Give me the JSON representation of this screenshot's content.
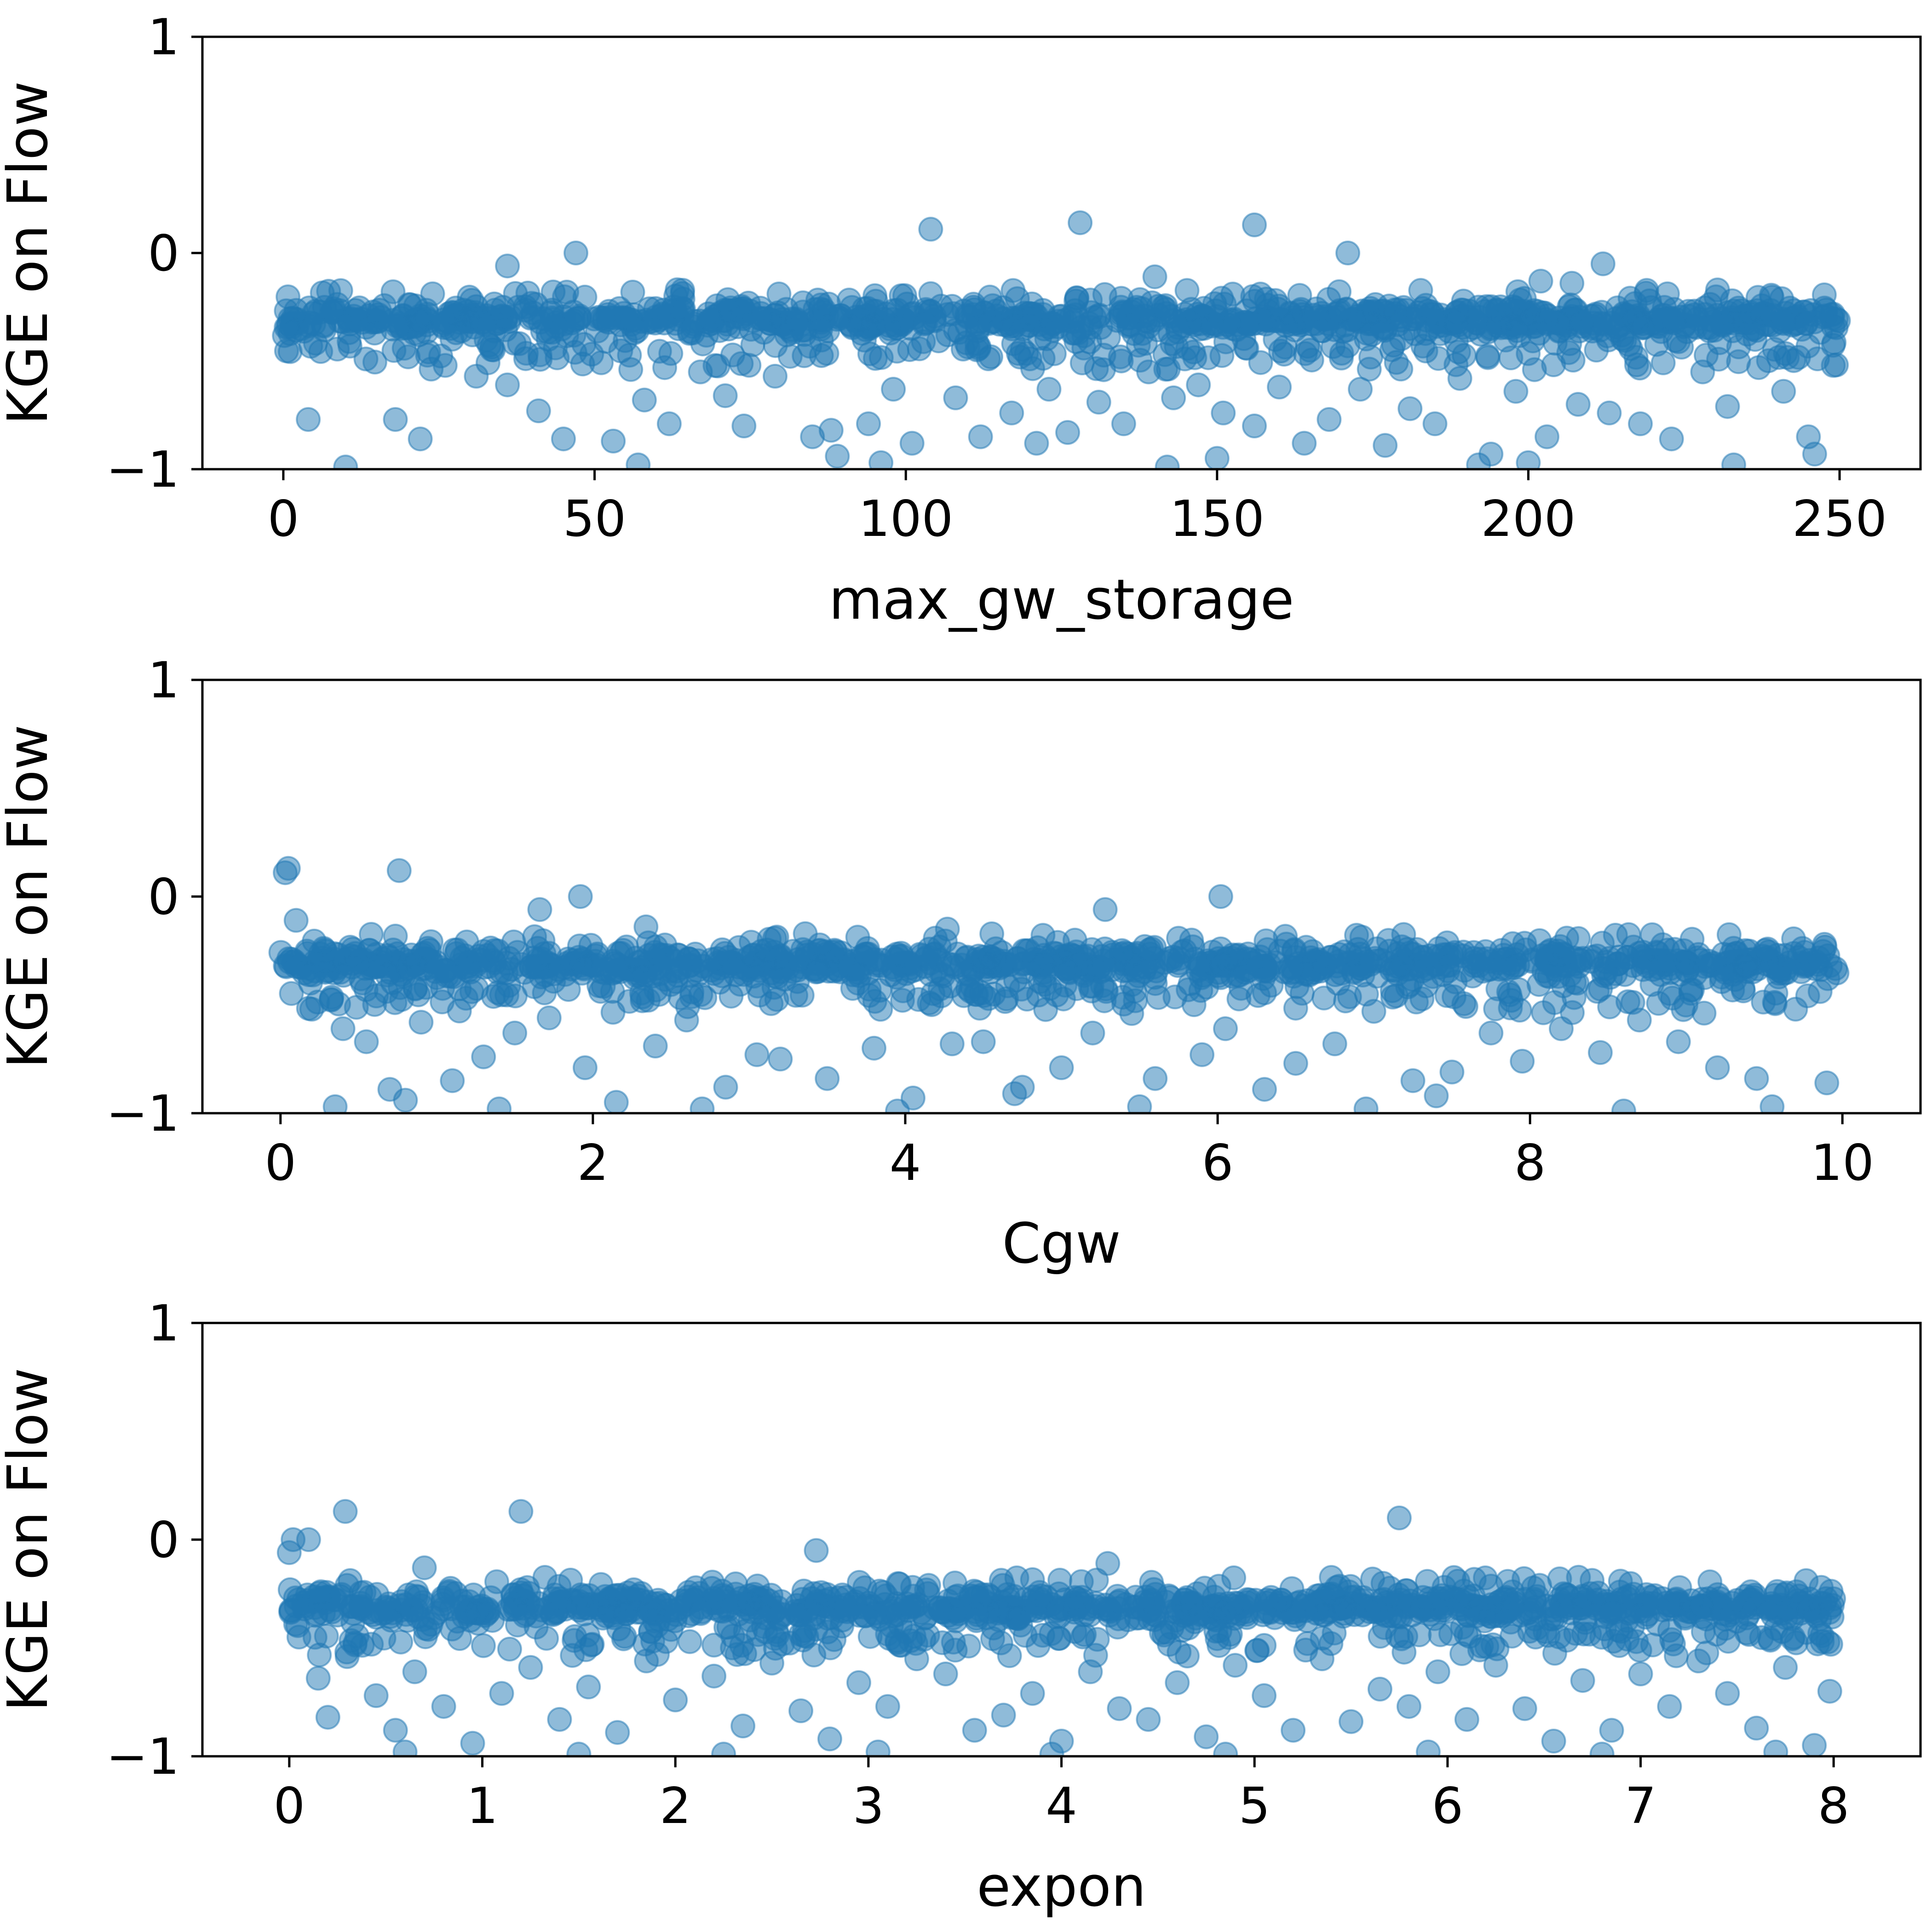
{
  "chart_data": [
    {
      "type": "scatter",
      "xlabel": "max_gw_storage",
      "ylabel": "KGE on Flow",
      "xlim": [
        -13,
        263
      ],
      "ylim": [
        -1,
        1
      ],
      "xticks": [
        0,
        50,
        100,
        150,
        200,
        250
      ],
      "yticks": [
        -1,
        0,
        1
      ],
      "xtick_labels": [
        "0",
        "50",
        "100",
        "150",
        "200",
        "250"
      ],
      "ytick_labels": [
        "−1",
        "0",
        "1"
      ],
      "marker_color": "#1f77b4",
      "marker_alpha": 0.5,
      "x_range": [
        0,
        250
      ],
      "band": {
        "y_center": -0.31,
        "y_half_width": 0.06
      },
      "points": [
        [
          104,
          0.11
        ],
        [
          128,
          0.14
        ],
        [
          156,
          0.13
        ],
        [
          47,
          0.0
        ],
        [
          171,
          0.0
        ],
        [
          36,
          -0.06
        ],
        [
          212,
          -0.05
        ],
        [
          140,
          -0.11
        ],
        [
          202,
          -0.13
        ],
        [
          207,
          -0.14
        ],
        [
          26,
          -0.52
        ],
        [
          31,
          -0.57
        ],
        [
          36,
          -0.61
        ],
        [
          4,
          -0.77
        ],
        [
          18,
          -0.77
        ],
        [
          41,
          -0.73
        ],
        [
          45,
          -0.86
        ],
        [
          53,
          -0.87
        ],
        [
          58,
          -0.68
        ],
        [
          62,
          -0.79
        ],
        [
          67,
          -0.55
        ],
        [
          71,
          -0.66
        ],
        [
          74,
          -0.8
        ],
        [
          79,
          -0.57
        ],
        [
          85,
          -0.85
        ],
        [
          89,
          -0.94
        ],
        [
          94,
          -0.79
        ],
        [
          98,
          -0.63
        ],
        [
          101,
          -0.88
        ],
        [
          108,
          -0.67
        ],
        [
          112,
          -0.85
        ],
        [
          117,
          -0.74
        ],
        [
          121,
          -0.88
        ],
        [
          126,
          -0.83
        ],
        [
          131,
          -0.69
        ],
        [
          135,
          -0.79
        ],
        [
          139,
          -0.55
        ],
        [
          143,
          -0.67
        ],
        [
          147,
          -0.61
        ],
        [
          151,
          -0.74
        ],
        [
          156,
          -0.8
        ],
        [
          160,
          -0.62
        ],
        [
          164,
          -0.88
        ],
        [
          168,
          -0.77
        ],
        [
          173,
          -0.63
        ],
        [
          177,
          -0.89
        ],
        [
          181,
          -0.72
        ],
        [
          185,
          -0.79
        ],
        [
          189,
          -0.58
        ],
        [
          194,
          -0.93
        ],
        [
          198,
          -0.64
        ],
        [
          203,
          -0.85
        ],
        [
          208,
          -0.7
        ],
        [
          213,
          -0.74
        ],
        [
          218,
          -0.79
        ],
        [
          223,
          -0.86
        ],
        [
          228,
          -0.55
        ],
        [
          232,
          -0.71
        ],
        [
          237,
          -0.53
        ],
        [
          241,
          -0.64
        ],
        [
          245,
          -0.85
        ],
        [
          249,
          -0.52
        ],
        [
          10,
          -0.99
        ],
        [
          57,
          -0.98
        ],
        [
          96,
          -0.97
        ],
        [
          142,
          -0.99
        ],
        [
          192,
          -0.98
        ],
        [
          233,
          -0.98
        ],
        [
          22,
          -0.86
        ],
        [
          88,
          -0.82
        ],
        [
          123,
          -0.63
        ],
        [
          150,
          -0.95
        ],
        [
          200,
          -0.97
        ],
        [
          246,
          -0.93
        ]
      ]
    },
    {
      "type": "scatter",
      "xlabel": "Cgw",
      "ylabel": "KGE on Flow",
      "xlim": [
        -0.5,
        10.5
      ],
      "ylim": [
        -1,
        1
      ],
      "xticks": [
        0,
        2,
        4,
        6,
        8,
        10
      ],
      "yticks": [
        -1,
        0,
        1
      ],
      "xtick_labels": [
        "0",
        "2",
        "4",
        "6",
        "8",
        "10"
      ],
      "ytick_labels": [
        "−1",
        "0",
        "1"
      ],
      "marker_color": "#1f77b4",
      "marker_alpha": 0.5,
      "x_range": [
        0,
        10
      ],
      "band": {
        "y_center": -0.31,
        "y_half_width": 0.06
      },
      "points": [
        [
          0.05,
          0.13
        ],
        [
          0.03,
          0.11
        ],
        [
          0.76,
          0.12
        ],
        [
          1.92,
          0.0
        ],
        [
          6.02,
          0.0
        ],
        [
          1.66,
          -0.06
        ],
        [
          5.28,
          -0.06
        ],
        [
          0.1,
          -0.11
        ],
        [
          4.27,
          -0.15
        ],
        [
          2.34,
          -0.14
        ],
        [
          0.2,
          -0.52
        ],
        [
          0.4,
          -0.61
        ],
        [
          0.55,
          -0.67
        ],
        [
          0.7,
          -0.89
        ],
        [
          0.9,
          -0.58
        ],
        [
          1.1,
          -0.85
        ],
        [
          1.3,
          -0.74
        ],
        [
          1.5,
          -0.63
        ],
        [
          1.72,
          -0.56
        ],
        [
          1.95,
          -0.79
        ],
        [
          2.15,
          -0.95
        ],
        [
          2.4,
          -0.69
        ],
        [
          2.6,
          -0.57
        ],
        [
          2.85,
          -0.88
        ],
        [
          3.05,
          -0.73
        ],
        [
          3.2,
          -0.75
        ],
        [
          3.5,
          -0.84
        ],
        [
          3.8,
          -0.7
        ],
        [
          4.05,
          -0.93
        ],
        [
          4.3,
          -0.68
        ],
        [
          4.5,
          -0.67
        ],
        [
          4.75,
          -0.88
        ],
        [
          5.0,
          -0.79
        ],
        [
          5.2,
          -0.63
        ],
        [
          5.45,
          -0.54
        ],
        [
          5.6,
          -0.84
        ],
        [
          5.9,
          -0.73
        ],
        [
          6.05,
          -0.61
        ],
        [
          6.3,
          -0.89
        ],
        [
          6.5,
          -0.77
        ],
        [
          6.75,
          -0.68
        ],
        [
          7.0,
          -0.53
        ],
        [
          7.25,
          -0.85
        ],
        [
          7.5,
          -0.81
        ],
        [
          7.75,
          -0.63
        ],
        [
          7.95,
          -0.76
        ],
        [
          8.2,
          -0.61
        ],
        [
          8.45,
          -0.72
        ],
        [
          8.7,
          -0.57
        ],
        [
          8.95,
          -0.67
        ],
        [
          9.2,
          -0.79
        ],
        [
          9.45,
          -0.84
        ],
        [
          9.7,
          -0.52
        ],
        [
          9.9,
          -0.86
        ],
        [
          0.35,
          -0.97
        ],
        [
          1.4,
          -0.98
        ],
        [
          2.7,
          -0.98
        ],
        [
          3.95,
          -0.99
        ],
        [
          5.5,
          -0.97
        ],
        [
          6.95,
          -0.98
        ],
        [
          8.6,
          -0.99
        ],
        [
          9.55,
          -0.97
        ],
        [
          0.8,
          -0.94
        ],
        [
          4.7,
          -0.91
        ],
        [
          7.4,
          -0.92
        ]
      ]
    },
    {
      "type": "scatter",
      "xlabel": "expon",
      "ylabel": "KGE on Flow",
      "xlim": [
        -0.45,
        8.45
      ],
      "ylim": [
        -1,
        1
      ],
      "xticks": [
        0,
        1,
        2,
        3,
        4,
        5,
        6,
        7,
        8
      ],
      "yticks": [
        -1,
        0,
        1
      ],
      "xtick_labels": [
        "0",
        "1",
        "2",
        "3",
        "4",
        "5",
        "6",
        "7",
        "8"
      ],
      "ytick_labels": [
        "−1",
        "0",
        "1"
      ],
      "marker_color": "#1f77b4",
      "marker_alpha": 0.5,
      "x_range": [
        0,
        8
      ],
      "band": {
        "y_center": -0.31,
        "y_half_width": 0.06
      },
      "points": [
        [
          0.29,
          0.13
        ],
        [
          1.2,
          0.13
        ],
        [
          5.75,
          0.1
        ],
        [
          0.02,
          0.0
        ],
        [
          0.1,
          0.0
        ],
        [
          0.0,
          -0.06
        ],
        [
          2.73,
          -0.05
        ],
        [
          0.7,
          -0.13
        ],
        [
          4.24,
          -0.11
        ],
        [
          0.05,
          -0.45
        ],
        [
          0.15,
          -0.64
        ],
        [
          0.2,
          -0.82
        ],
        [
          0.3,
          -0.54
        ],
        [
          0.45,
          -0.72
        ],
        [
          0.55,
          -0.88
        ],
        [
          0.65,
          -0.61
        ],
        [
          0.8,
          -0.77
        ],
        [
          0.95,
          -0.94
        ],
        [
          1.1,
          -0.71
        ],
        [
          1.25,
          -0.59
        ],
        [
          1.4,
          -0.83
        ],
        [
          1.55,
          -0.68
        ],
        [
          1.7,
          -0.89
        ],
        [
          1.85,
          -0.56
        ],
        [
          2.0,
          -0.74
        ],
        [
          2.2,
          -0.63
        ],
        [
          2.35,
          -0.86
        ],
        [
          2.5,
          -0.57
        ],
        [
          2.65,
          -0.79
        ],
        [
          2.8,
          -0.92
        ],
        [
          2.95,
          -0.66
        ],
        [
          3.1,
          -0.77
        ],
        [
          3.25,
          -0.55
        ],
        [
          3.4,
          -0.62
        ],
        [
          3.55,
          -0.88
        ],
        [
          3.7,
          -0.81
        ],
        [
          3.85,
          -0.71
        ],
        [
          4.0,
          -0.93
        ],
        [
          4.15,
          -0.61
        ],
        [
          4.3,
          -0.78
        ],
        [
          4.45,
          -0.83
        ],
        [
          4.6,
          -0.66
        ],
        [
          4.75,
          -0.91
        ],
        [
          4.9,
          -0.58
        ],
        [
          5.05,
          -0.72
        ],
        [
          5.2,
          -0.88
        ],
        [
          5.35,
          -0.55
        ],
        [
          5.5,
          -0.84
        ],
        [
          5.65,
          -0.69
        ],
        [
          5.8,
          -0.77
        ],
        [
          5.95,
          -0.61
        ],
        [
          6.1,
          -0.83
        ],
        [
          6.25,
          -0.58
        ],
        [
          6.4,
          -0.78
        ],
        [
          6.55,
          -0.93
        ],
        [
          6.7,
          -0.65
        ],
        [
          6.85,
          -0.88
        ],
        [
          7.0,
          -0.62
        ],
        [
          7.15,
          -0.77
        ],
        [
          7.3,
          -0.56
        ],
        [
          7.45,
          -0.71
        ],
        [
          7.6,
          -0.87
        ],
        [
          7.75,
          -0.59
        ],
        [
          7.9,
          -0.95
        ],
        [
          7.98,
          -0.7
        ],
        [
          0.6,
          -0.98
        ],
        [
          1.5,
          -0.99
        ],
        [
          2.25,
          -0.99
        ],
        [
          3.05,
          -0.98
        ],
        [
          3.95,
          -0.99
        ],
        [
          4.85,
          -0.99
        ],
        [
          5.9,
          -0.98
        ],
        [
          6.8,
          -0.99
        ],
        [
          7.7,
          -0.98
        ]
      ]
    }
  ]
}
